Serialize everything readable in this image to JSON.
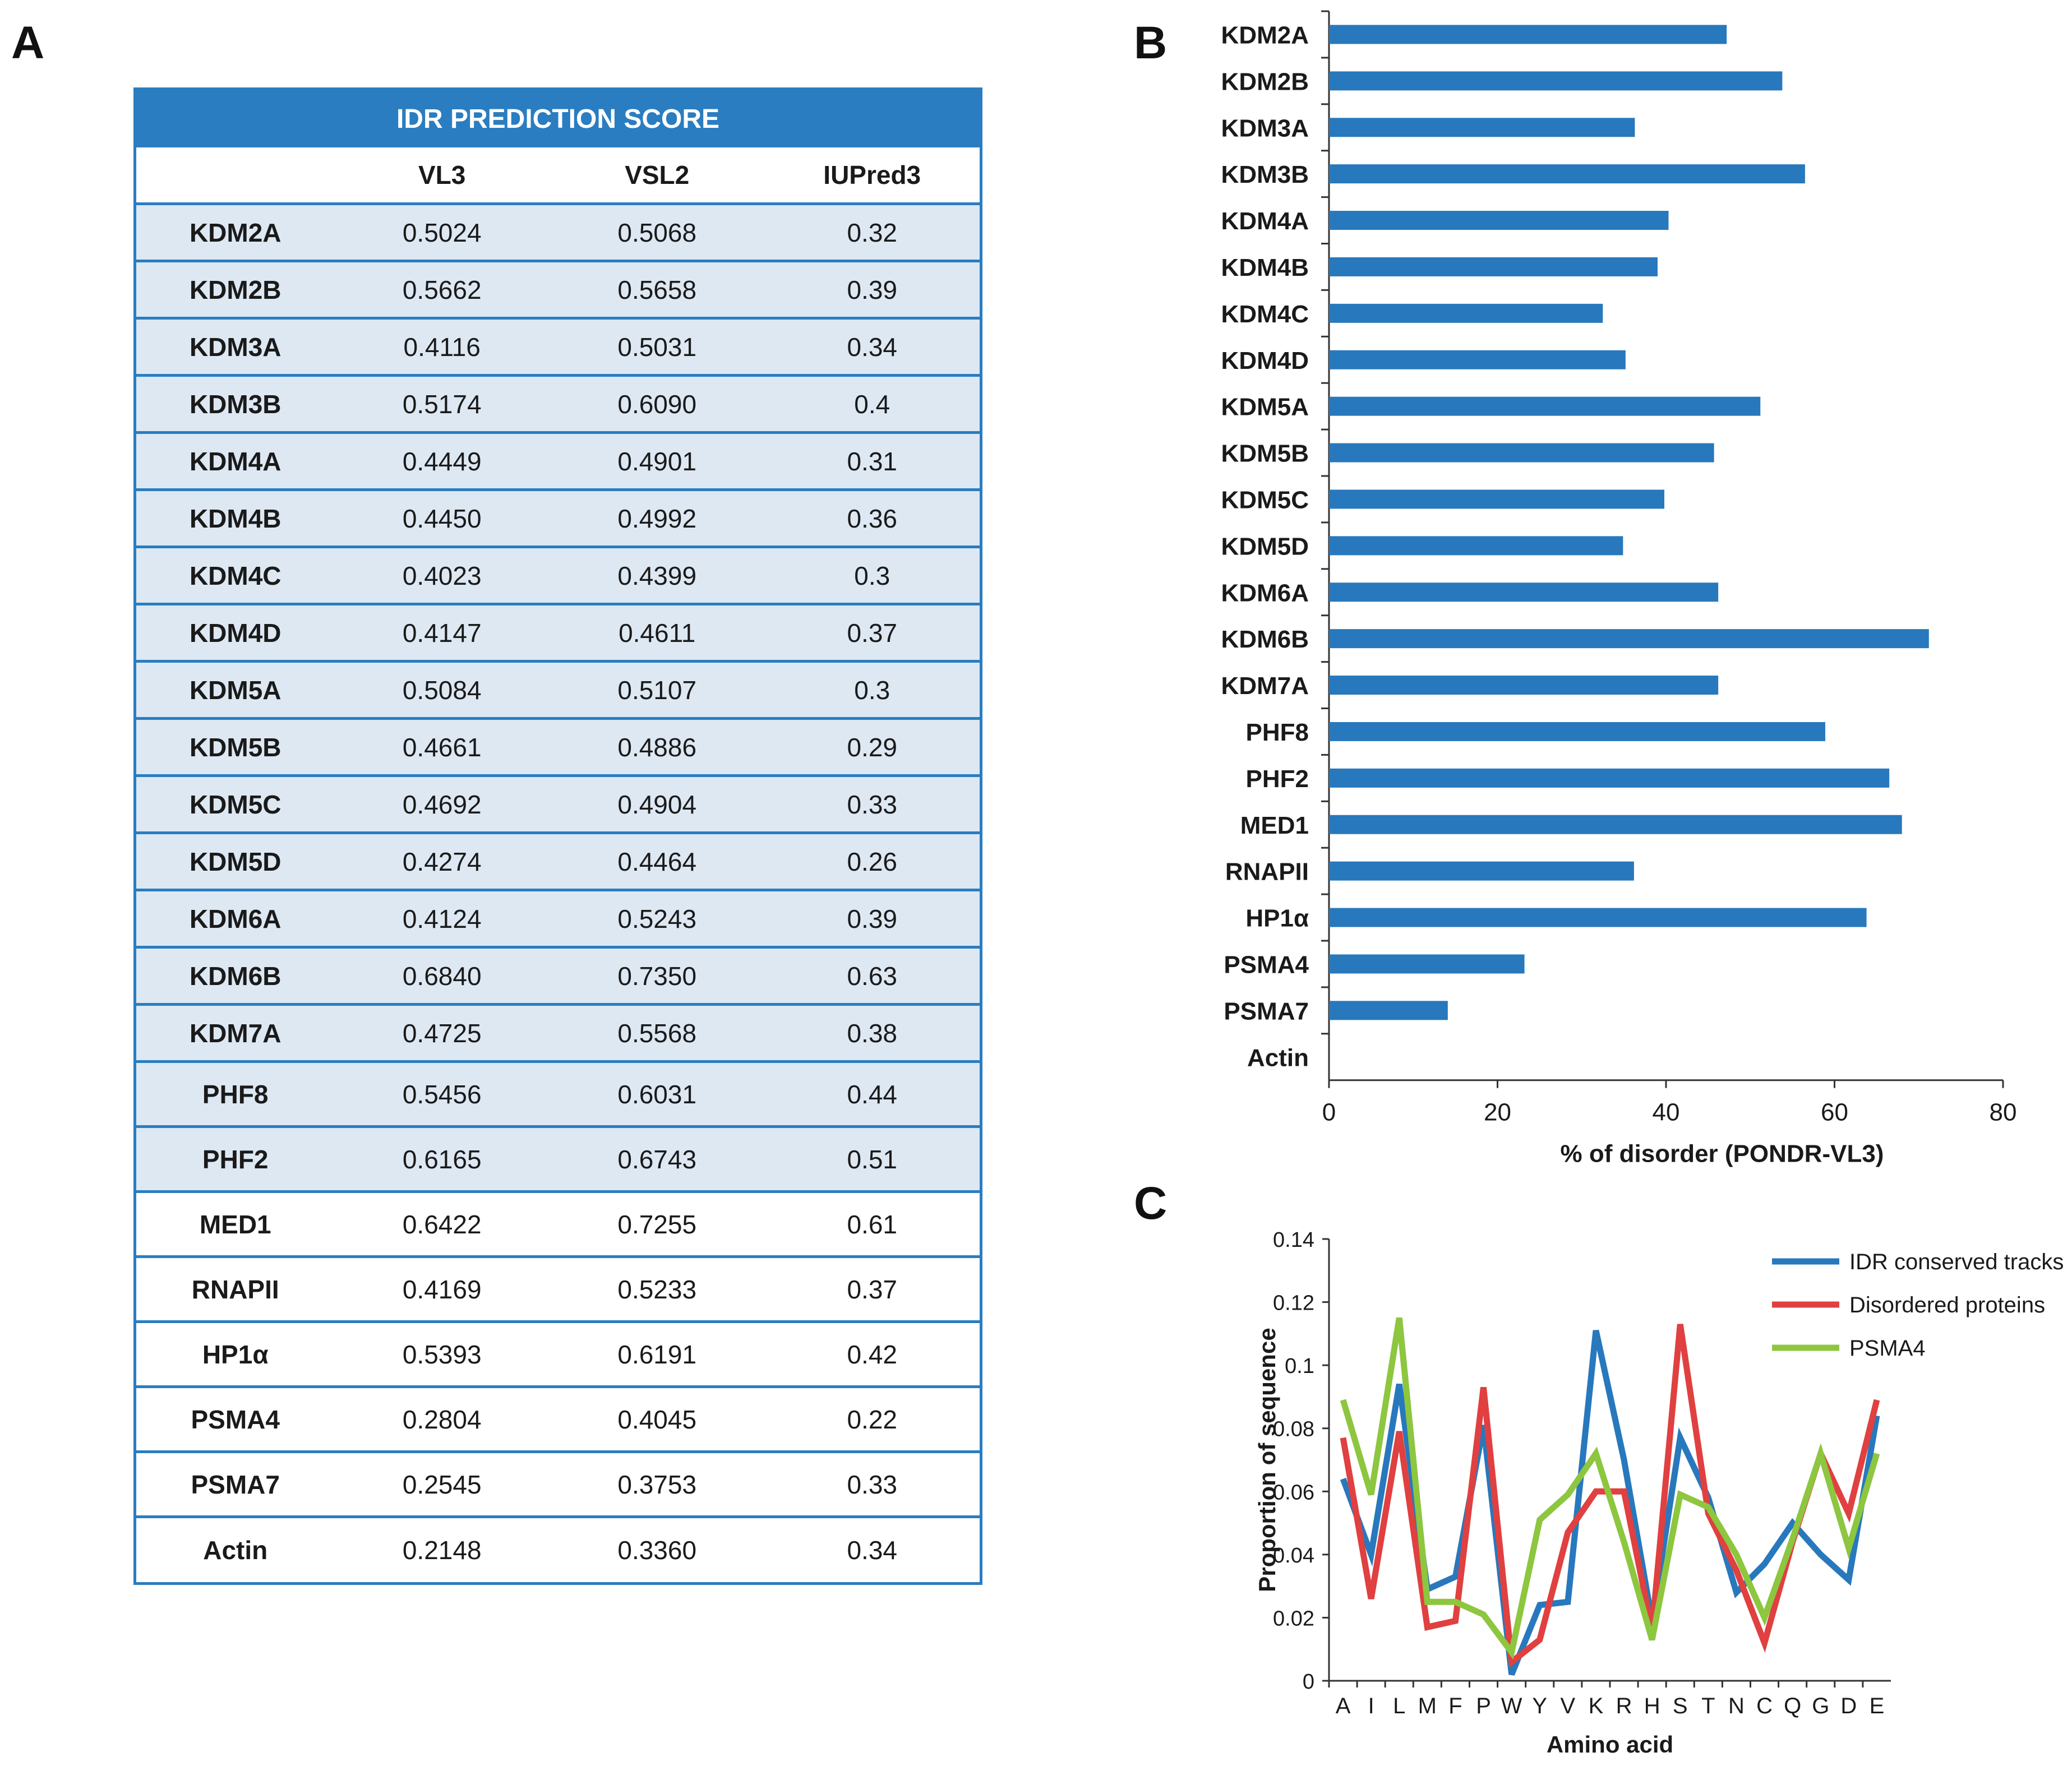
{
  "panels": {
    "a": "A",
    "b": "B",
    "c": "C"
  },
  "table": {
    "title": "IDR PREDICTION SCORE",
    "columns": [
      "",
      "VL3",
      "VSL2",
      "IUPred3"
    ],
    "rows": [
      {
        "name": "KDM2A",
        "vl3": "0.5024",
        "vsl2": "0.5068",
        "iupred3": "0.32",
        "shaded": true
      },
      {
        "name": "KDM2B",
        "vl3": "0.5662",
        "vsl2": "0.5658",
        "iupred3": "0.39",
        "shaded": true
      },
      {
        "name": "KDM3A",
        "vl3": "0.4116",
        "vsl2": "0.5031",
        "iupred3": "0.34",
        "shaded": true
      },
      {
        "name": "KDM3B",
        "vl3": "0.5174",
        "vsl2": "0.6090",
        "iupred3": "0.4",
        "shaded": true
      },
      {
        "name": "KDM4A",
        "vl3": "0.4449",
        "vsl2": "0.4901",
        "iupred3": "0.31",
        "shaded": true
      },
      {
        "name": "KDM4B",
        "vl3": "0.4450",
        "vsl2": "0.4992",
        "iupred3": "0.36",
        "shaded": true
      },
      {
        "name": "KDM4C",
        "vl3": "0.4023",
        "vsl2": "0.4399",
        "iupred3": "0.3",
        "shaded": true
      },
      {
        "name": "KDM4D",
        "vl3": "0.4147",
        "vsl2": "0.4611",
        "iupred3": "0.37",
        "shaded": true
      },
      {
        "name": "KDM5A",
        "vl3": "0.5084",
        "vsl2": "0.5107",
        "iupred3": "0.3",
        "shaded": true
      },
      {
        "name": "KDM5B",
        "vl3": "0.4661",
        "vsl2": "0.4886",
        "iupred3": "0.29",
        "shaded": true
      },
      {
        "name": "KDM5C",
        "vl3": "0.4692",
        "vsl2": "0.4904",
        "iupred3": "0.33",
        "shaded": true
      },
      {
        "name": "KDM5D",
        "vl3": "0.4274",
        "vsl2": "0.4464",
        "iupred3": "0.26",
        "shaded": true
      },
      {
        "name": "KDM6A",
        "vl3": "0.4124",
        "vsl2": "0.5243",
        "iupred3": "0.39",
        "shaded": true
      },
      {
        "name": "KDM6B",
        "vl3": "0.6840",
        "vsl2": "0.7350",
        "iupred3": "0.63",
        "shaded": true
      },
      {
        "name": "KDM7A",
        "vl3": "0.4725",
        "vsl2": "0.5568",
        "iupred3": "0.38",
        "shaded": true
      },
      {
        "name": "PHF8",
        "vl3": "0.5456",
        "vsl2": "0.6031",
        "iupred3": "0.44",
        "shaded": true
      },
      {
        "name": "PHF2",
        "vl3": "0.6165",
        "vsl2": "0.6743",
        "iupred3": "0.51",
        "shaded": true
      },
      {
        "name": "MED1",
        "vl3": "0.6422",
        "vsl2": "0.7255",
        "iupred3": "0.61",
        "shaded": false
      },
      {
        "name": "RNAPII",
        "vl3": "0.4169",
        "vsl2": "0.5233",
        "iupred3": "0.37",
        "shaded": false
      },
      {
        "name": "HP1α",
        "vl3": "0.5393",
        "vsl2": "0.6191",
        "iupred3": "0.42",
        "shaded": false
      },
      {
        "name": "PSMA4",
        "vl3": "0.2804",
        "vsl2": "0.4045",
        "iupred3": "0.22",
        "shaded": false
      },
      {
        "name": "PSMA7",
        "vl3": "0.2545",
        "vsl2": "0.3753",
        "iupred3": "0.33",
        "shaded": false
      },
      {
        "name": "Actin",
        "vl3": "0.2148",
        "vsl2": "0.3360",
        "iupred3": "0.34",
        "shaded": false
      }
    ]
  },
  "colors": {
    "accent": "#2a7dc0",
    "bar": "#2878bd",
    "shade": "#dde8f3"
  },
  "chart_data": [
    {
      "type": "bar",
      "orientation": "horizontal",
      "categories": [
        "KDM2A",
        "KDM2B",
        "KDM3A",
        "KDM3B",
        "KDM4A",
        "KDM4B",
        "KDM4C",
        "KDM4D",
        "KDM5A",
        "KDM5B",
        "KDM5C",
        "KDM5D",
        "KDM6A",
        "KDM6B",
        "KDM7A",
        "PHF8",
        "PHF2",
        "MED1",
        "RNAPII",
        "HP1α",
        "PSMA4",
        "PSMA7",
        "Actin"
      ],
      "values": [
        47.2,
        53.8,
        36.3,
        56.5,
        40.3,
        39.0,
        32.5,
        35.2,
        51.2,
        45.7,
        39.8,
        34.9,
        46.2,
        71.2,
        46.2,
        58.9,
        66.5,
        68.0,
        36.2,
        63.8,
        23.2,
        14.1,
        0
      ],
      "xlabel": "% of disorder (PONDR-VL3)",
      "xlim": [
        0,
        80
      ],
      "xticks": [
        "0",
        "20",
        "40",
        "60",
        "80"
      ],
      "color": "#2878bd"
    },
    {
      "type": "line",
      "x": [
        "A",
        "I",
        "L",
        "M",
        "F",
        "P",
        "W",
        "Y",
        "V",
        "K",
        "R",
        "H",
        "S",
        "T",
        "N",
        "C",
        "Q",
        "G",
        "D",
        "E"
      ],
      "series": [
        {
          "name": "IDR conserved tracks",
          "color": "#2878bd",
          "values": [
            0.064,
            0.04,
            0.094,
            0.029,
            0.033,
            0.081,
            0.002,
            0.024,
            0.025,
            0.111,
            0.07,
            0.019,
            0.077,
            0.058,
            0.028,
            0.037,
            0.05,
            0.04,
            0.032,
            0.084
          ]
        },
        {
          "name": "Disordered proteins",
          "color": "#e04040",
          "values": [
            0.077,
            0.026,
            0.079,
            0.017,
            0.019,
            0.093,
            0.006,
            0.013,
            0.047,
            0.06,
            0.06,
            0.016,
            0.113,
            0.053,
            0.035,
            0.012,
            0.044,
            0.072,
            0.053,
            0.089
          ]
        },
        {
          "name": "PSMA4",
          "color": "#8dc63f",
          "values": [
            0.089,
            0.059,
            0.115,
            0.025,
            0.025,
            0.021,
            0.009,
            0.051,
            0.059,
            0.072,
            0.044,
            0.013,
            0.059,
            0.055,
            0.04,
            0.02,
            0.045,
            0.072,
            0.042,
            0.072
          ]
        }
      ],
      "xlabel": "Amino acid",
      "ylabel": "Proportion of sequence",
      "ylim": [
        0,
        0.14
      ],
      "yticks": [
        "0",
        "0.02",
        "0.04",
        "0.06",
        "0.08",
        "0.1",
        "0.12",
        "0.14"
      ],
      "legend": "top-right"
    }
  ]
}
